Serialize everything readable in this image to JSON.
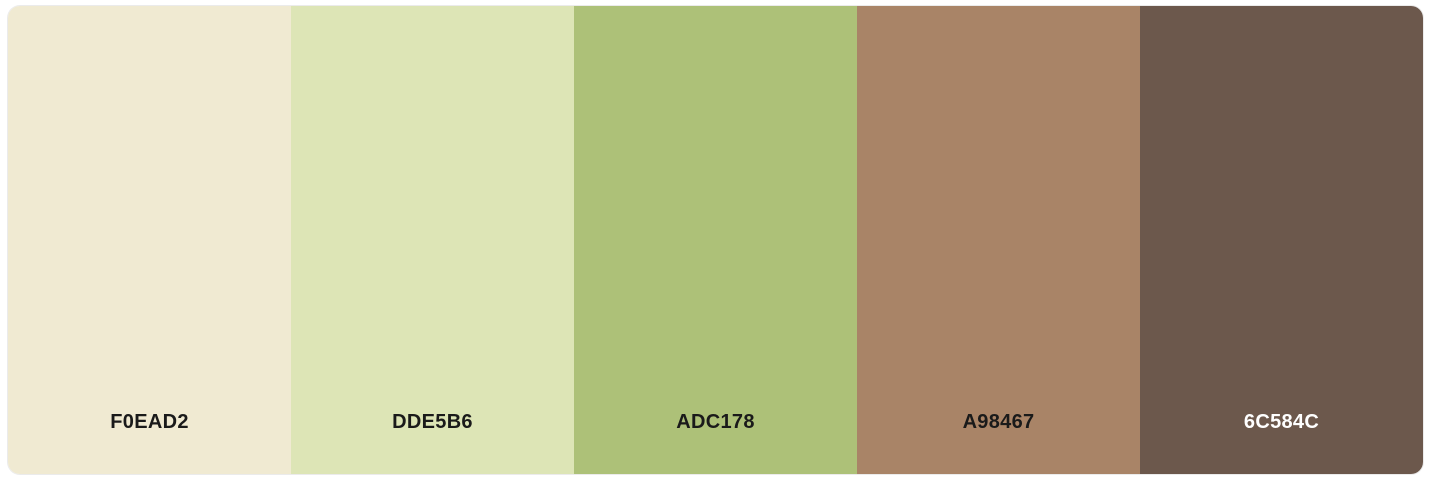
{
  "palette": {
    "swatches": [
      {
        "hex": "F0EAD2",
        "color": "#F0EAD2",
        "text_color": "#1a1a1a"
      },
      {
        "hex": "DDE5B6",
        "color": "#DDE5B6",
        "text_color": "#1a1a1a"
      },
      {
        "hex": "ADC178",
        "color": "#ADC178",
        "text_color": "#1a1a1a"
      },
      {
        "hex": "A98467",
        "color": "#A98467",
        "text_color": "#1a1a1a"
      },
      {
        "hex": "6C584C",
        "color": "#6C584C",
        "text_color": "#ffffff"
      }
    ]
  }
}
